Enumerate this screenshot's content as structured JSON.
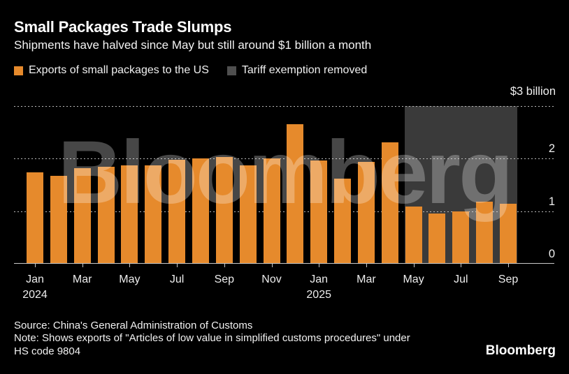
{
  "chart_data": {
    "type": "bar",
    "title": "Small Packages Trade Slumps",
    "subtitle": "Shipments have halved since May but still around $1 billion a month",
    "categories": [
      "Jan 2024",
      "Feb 2024",
      "Mar 2024",
      "Apr 2024",
      "May 2024",
      "Jun 2024",
      "Jul 2024",
      "Aug 2024",
      "Sep 2024",
      "Oct 2024",
      "Nov 2024",
      "Dec 2024",
      "Jan 2025",
      "Feb 2025",
      "Mar 2025",
      "Apr 2025",
      "May 2025",
      "Jun 2025",
      "Jul 2025",
      "Aug 2025",
      "Sep 2025"
    ],
    "series": [
      {
        "name": "Exports of small packages to the US",
        "unit": "$ billion",
        "values": [
          1.73,
          1.67,
          1.82,
          1.84,
          1.87,
          1.87,
          1.97,
          2.0,
          2.02,
          1.87,
          2.0,
          2.65,
          1.96,
          1.62,
          1.93,
          2.3,
          1.09,
          0.95,
          0.99,
          1.18,
          1.14
        ]
      }
    ],
    "annotation_region": {
      "label": "Tariff exemption removed",
      "start": "May 2025",
      "end": "Sep 2025",
      "start_index": 16,
      "end_index": 20,
      "y_from": 0,
      "y_to": 3
    },
    "y_axis": {
      "top_label": "$3 billion",
      "ticks": [
        0,
        1,
        2,
        3
      ],
      "range": [
        0,
        3
      ],
      "side": "right",
      "gridlines": "dotted"
    },
    "x_axis": {
      "ticks": [
        {
          "index": 0,
          "label": "Jan",
          "year": "2024"
        },
        {
          "index": 2,
          "label": "Mar"
        },
        {
          "index": 4,
          "label": "May"
        },
        {
          "index": 6,
          "label": "Jul"
        },
        {
          "index": 8,
          "label": "Sep"
        },
        {
          "index": 10,
          "label": "Nov"
        },
        {
          "index": 12,
          "label": "Jan",
          "year": "2025"
        },
        {
          "index": 14,
          "label": "Mar"
        },
        {
          "index": 16,
          "label": "May"
        },
        {
          "index": 18,
          "label": "Jul"
        },
        {
          "index": 20,
          "label": "Sep"
        }
      ]
    },
    "legend_position": "top"
  },
  "watermark": "Bloomberg",
  "footer": {
    "source": "Source: China's General Administration of Customs",
    "note": "Note: Shows exports of \"Articles of low value in simplified customs procedures\" under HS code 9804"
  },
  "logo": "Bloomberg",
  "colors": {
    "background": "#000000",
    "bar": "#E68A2C",
    "region": "#3A3A3A",
    "legend_region_swatch": "#4F4F4F",
    "text": "#FFFFFF",
    "axis": "#C9C9C9"
  }
}
